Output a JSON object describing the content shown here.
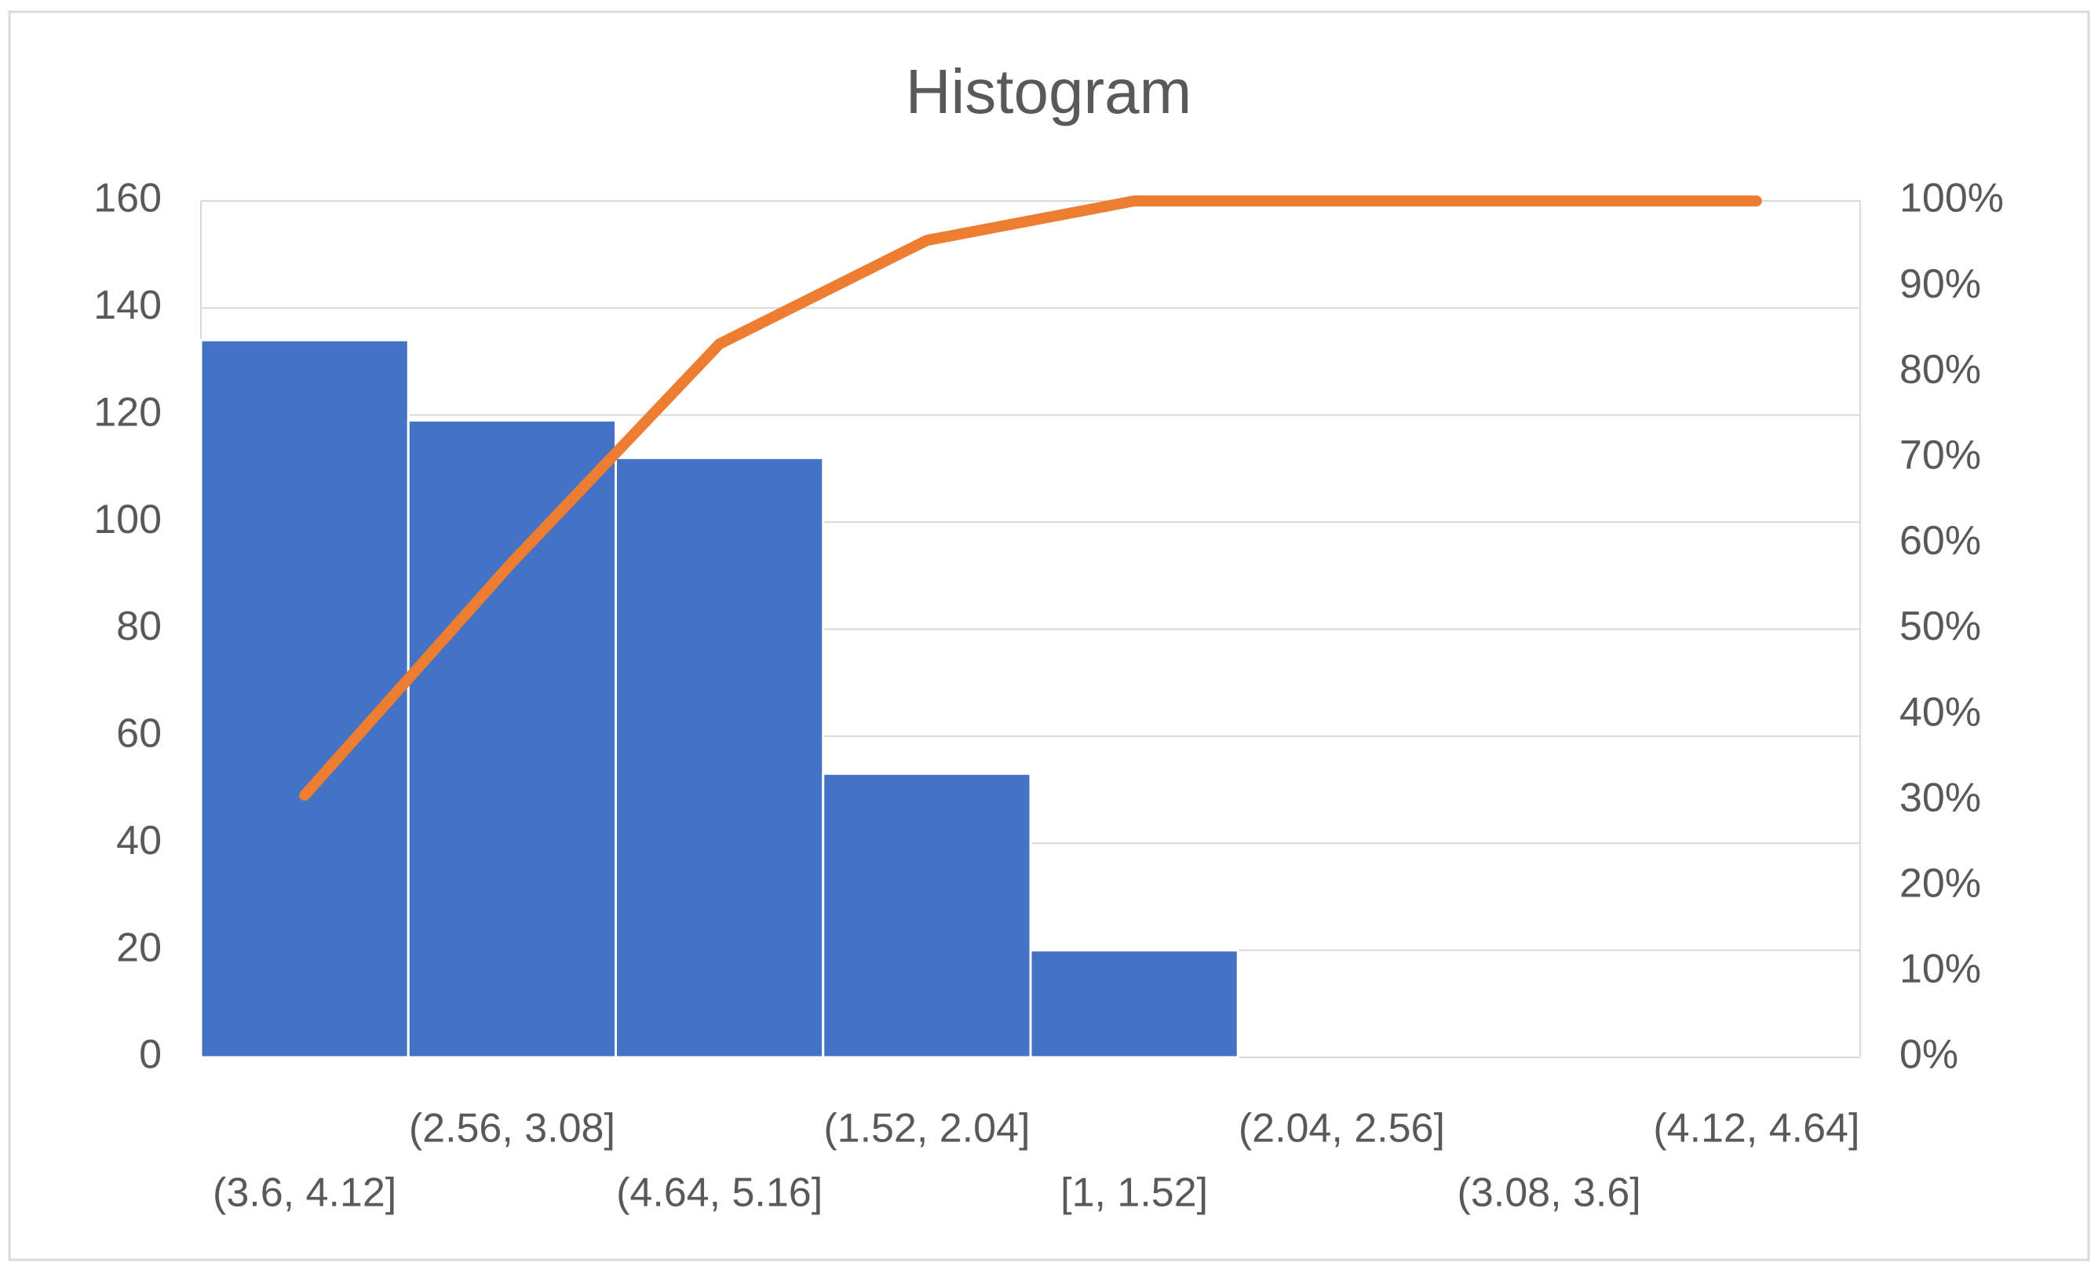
{
  "chart_data": {
    "type": "pareto",
    "title": "Histogram",
    "categories": [
      "(3.6, 4.12]",
      "(2.56, 3.08]",
      "(4.64, 5.16]",
      "(1.52, 2.04]",
      "[1, 1.52]",
      "(2.04, 2.56]",
      "(3.08, 3.6]",
      "(4.12, 4.64]"
    ],
    "series": [
      {
        "color": "#4472c4",
        "values": [
          134,
          119,
          112,
          53,
          20,
          0,
          0,
          0
        ]
      },
      {
        "color": "#ed7d31",
        "axis": "y2",
        "values": [
          30.6,
          57.8,
          83.3,
          95.4,
          100,
          100,
          100,
          100
        ]
      }
    ],
    "ylim": [
      0,
      160
    ],
    "yticks": [
      0,
      20,
      40,
      60,
      80,
      100,
      120,
      140,
      160
    ],
    "y2lim": [
      0,
      100
    ],
    "y2ticks": [
      {
        "value": 0,
        "label": "0%"
      },
      {
        "value": 10,
        "label": "10%"
      },
      {
        "value": 20,
        "label": "20%"
      },
      {
        "value": 30,
        "label": "30%"
      },
      {
        "value": 40,
        "label": "40%"
      },
      {
        "value": 50,
        "label": "50%"
      },
      {
        "value": 60,
        "label": "60%"
      },
      {
        "value": 70,
        "label": "70%"
      },
      {
        "value": 80,
        "label": "80%"
      },
      {
        "value": 90,
        "label": "90%"
      },
      {
        "value": 100,
        "label": "100%"
      }
    ],
    "grid": true
  }
}
